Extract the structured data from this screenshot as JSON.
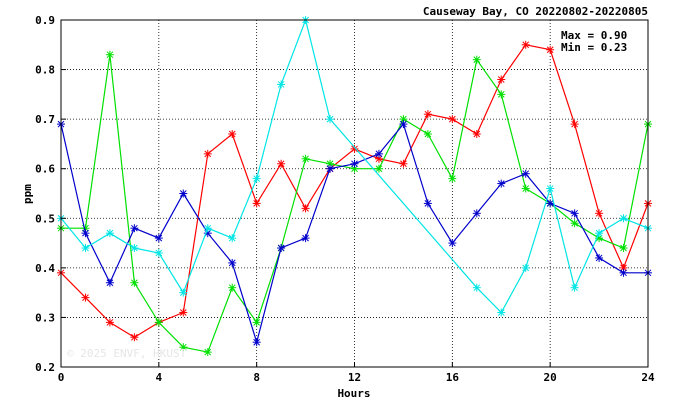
{
  "chart_data": {
    "type": "line",
    "title": "Causeway Bay, CO 20220802-20220805",
    "xlabel": "Hours",
    "ylabel": "ppm",
    "xlim": [
      0,
      24
    ],
    "ylim": [
      0.2,
      0.9
    ],
    "x_ticks": [
      0,
      4,
      8,
      12,
      16,
      20,
      24
    ],
    "y_ticks": [
      0.2,
      0.3,
      0.4,
      0.5,
      0.6,
      0.7,
      0.8,
      0.9
    ],
    "x_tick_labels": [
      "0",
      "4",
      "8",
      "12",
      "16",
      "20",
      "24"
    ],
    "y_tick_labels": [
      "0.2",
      "0.3",
      "0.4",
      "0.5",
      "0.6",
      "0.7",
      "0.8",
      "0.9"
    ],
    "grid": true,
    "stats": {
      "max": "Max = 0.90",
      "min": "Min = 0.23"
    },
    "watermark": "© 2025 ENVF, HKUST",
    "series": [
      {
        "color": "#ff0000",
        "x": [
          0,
          1,
          2,
          3,
          4,
          5,
          6,
          7,
          8,
          9,
          10,
          11,
          12,
          13,
          14,
          15,
          16,
          17,
          18,
          19,
          20,
          21,
          22,
          23,
          24
        ],
        "values": [
          0.39,
          0.34,
          0.29,
          0.26,
          0.29,
          0.31,
          0.63,
          0.67,
          0.53,
          0.61,
          0.52,
          0.6,
          0.64,
          0.62,
          0.61,
          0.71,
          0.7,
          0.67,
          0.78,
          0.85,
          0.84,
          0.69,
          0.51,
          0.4,
          0.53
        ]
      },
      {
        "color": "#00e000",
        "x": [
          0,
          1,
          2,
          3,
          4,
          5,
          6,
          7,
          8,
          9,
          10,
          11,
          12,
          13,
          14,
          15,
          16,
          17,
          18,
          19,
          20,
          21,
          22,
          23,
          24
        ],
        "values": [
          0.48,
          0.48,
          0.83,
          0.37,
          0.29,
          0.24,
          0.23,
          0.36,
          0.29,
          0.44,
          0.62,
          0.61,
          0.6,
          0.6,
          0.7,
          0.67,
          0.58,
          0.82,
          0.75,
          0.56,
          0.53,
          0.49,
          0.46,
          0.44,
          0.69
        ]
      },
      {
        "color": "#0000cc",
        "x": [
          0,
          1,
          2,
          3,
          4,
          5,
          6,
          7,
          8,
          9,
          10,
          11,
          12,
          13,
          14,
          15,
          16,
          17,
          18,
          19,
          20,
          21,
          22,
          23,
          24
        ],
        "values": [
          0.69,
          0.47,
          0.37,
          0.48,
          0.46,
          0.55,
          0.47,
          0.41,
          0.25,
          0.44,
          0.46,
          0.6,
          0.61,
          0.63,
          0.69,
          0.53,
          0.45,
          0.51,
          0.57,
          0.59,
          0.53,
          0.51,
          0.42,
          0.39,
          0.39
        ]
      },
      {
        "color": "#00e5e5",
        "x": [
          0,
          1,
          2,
          3,
          4,
          5,
          6,
          7,
          8,
          9,
          10,
          11,
          17,
          18,
          19,
          20,
          21,
          22,
          23,
          24
        ],
        "values": [
          0.5,
          0.44,
          0.47,
          0.44,
          0.43,
          0.35,
          0.48,
          0.46,
          0.58,
          0.77,
          0.9,
          0.7,
          0.36,
          0.31,
          0.4,
          0.56,
          0.36,
          0.47,
          0.5,
          0.48
        ]
      }
    ]
  }
}
